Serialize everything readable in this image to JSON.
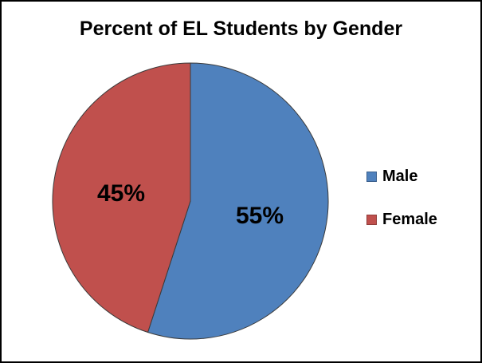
{
  "chart_data": {
    "type": "pie",
    "title": "Percent of EL Students by Gender",
    "categories": [
      "Male",
      "Female"
    ],
    "values": [
      55,
      45
    ],
    "data_labels": [
      "55%",
      "45%"
    ],
    "colors": [
      "#4F81BD",
      "#C0504D"
    ],
    "legend_position": "right"
  }
}
